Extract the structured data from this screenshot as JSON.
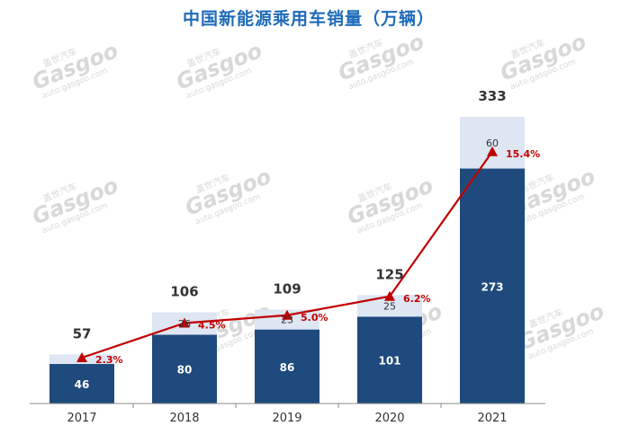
{
  "chart_data": {
    "type": "bar",
    "stacked": true,
    "title": "中国新能源乘用车销量（万辆）",
    "categories": [
      "2017",
      "2018",
      "2019",
      "2020",
      "2021"
    ],
    "series": [
      {
        "values": [
          46,
          80,
          86,
          101,
          273
        ],
        "value_labels": [
          "46",
          "80",
          "86",
          "101",
          "273"
        ],
        "color": "#1f4a7d"
      },
      {
        "values": [
          11,
          26,
          23,
          25,
          60
        ],
        "value_labels": [
          "",
          "26",
          "23",
          "25",
          "60"
        ],
        "color": "#dde6f2"
      }
    ],
    "totals": [
      "57",
      "106",
      "109",
      "125",
      "333"
    ],
    "line": {
      "values": [
        2.3,
        4.5,
        5.0,
        6.2,
        15.4
      ],
      "labels": [
        "2.3%",
        "4.5%",
        "5.0%",
        "6.2%",
        "15.4%"
      ],
      "color": "#c00000"
    },
    "ylim": [
      0,
      355
    ],
    "grid": false,
    "legend": "none"
  },
  "watermark": {
    "cn": "盖世汽车",
    "logo": "Gasgoo",
    "url": "auto.gasgoo.com"
  }
}
